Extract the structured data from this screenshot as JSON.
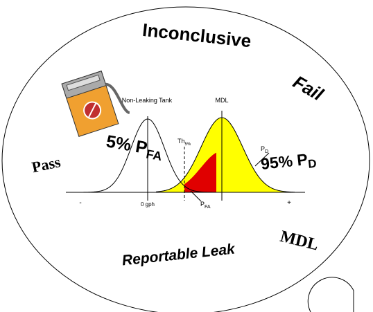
{
  "labels": {
    "inconclusive": "Inconclusive",
    "fail": "Fail",
    "pass": "Pass",
    "reportable_leak": "Reportable Leak",
    "mdl_region": "MDL",
    "non_leaking_tank": "Non-Leaking Tank",
    "mdl_curve": "MDL",
    "threshold": {
      "main": "Th",
      "sub": "5%"
    },
    "pfa_big": {
      "main": "5% P",
      "sub": "FA"
    },
    "pd_big": {
      "main": "95% P",
      "sub": "D"
    },
    "pd_small": {
      "main": "P",
      "sub": "D"
    },
    "pfa_small": {
      "main": "P",
      "sub": "FA"
    },
    "axis_minus": "-",
    "axis_zero": "0 gph",
    "axis_plus": "+"
  }
}
